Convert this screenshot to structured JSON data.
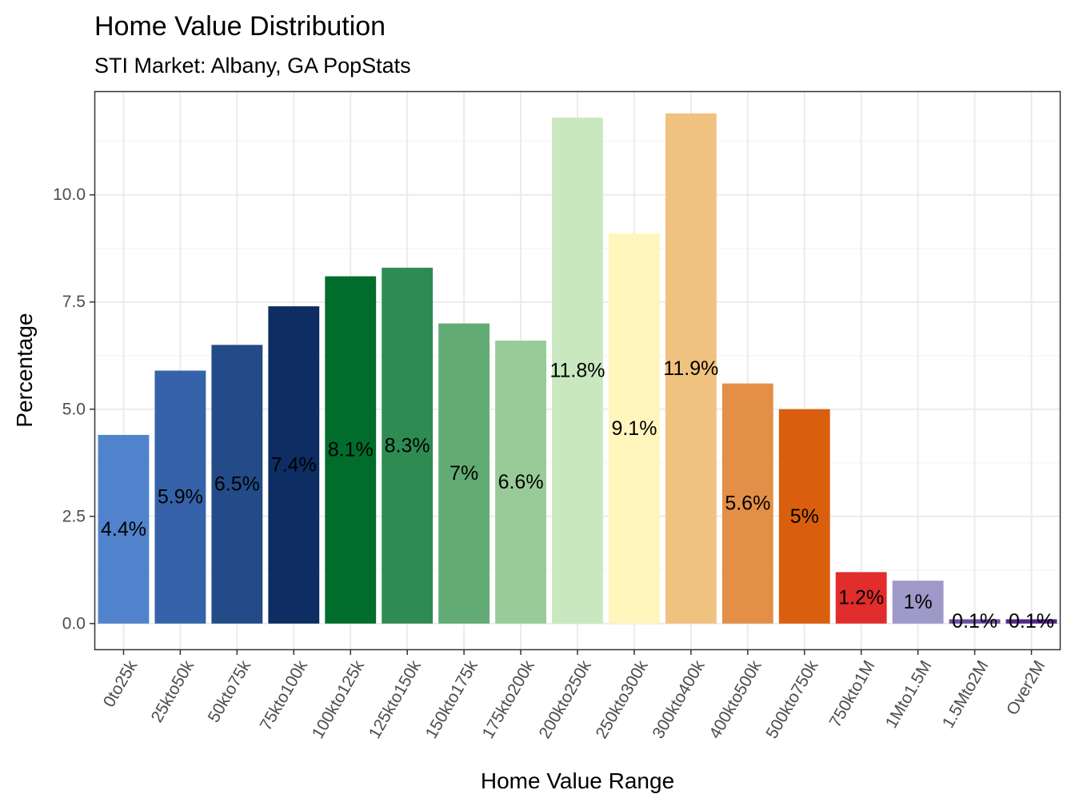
{
  "chart_data": {
    "type": "bar",
    "title": "Home Value Distribution",
    "subtitle": "STI Market: Albany, GA PopStats",
    "xlabel": "Home Value Range",
    "ylabel": "Percentage",
    "ylim": [
      -0.6,
      12.4
    ],
    "yticks": [
      0,
      2.5,
      5,
      7.5,
      10
    ],
    "ytick_labels": [
      "0.0",
      "2.5",
      "5.0",
      "7.5",
      "10.0"
    ],
    "grid": true,
    "legend": "none",
    "categories": [
      "0to25k",
      "25kto50k",
      "50kto75k",
      "75kto100k",
      "100kto125k",
      "125kto150k",
      "150kto175k",
      "175kto200k",
      "200kto250k",
      "250kto300k",
      "300kto400k",
      "400kto500k",
      "500kto750k",
      "750kto1M",
      "1Mto1.5M",
      "1.5Mto2M",
      "Over2M"
    ],
    "values": [
      4.4,
      5.9,
      6.5,
      7.4,
      8.1,
      8.3,
      7.0,
      6.6,
      11.8,
      9.1,
      11.9,
      5.6,
      5.0,
      1.2,
      1.0,
      0.1,
      0.1
    ],
    "labels": [
      "4.4%",
      "5.9%",
      "6.5%",
      "7.4%",
      "8.1%",
      "8.3%",
      "7%",
      "6.6%",
      "11.8%",
      "9.1%",
      "11.9%",
      "5.6%",
      "5%",
      "1.2%",
      "1%",
      "0.1%",
      "0.1%"
    ],
    "colors": [
      "#5083cc",
      "#3562a8",
      "#224b87",
      "#0d2d63",
      "#006d2c",
      "#2e8b52",
      "#63ab74",
      "#98cb98",
      "#c9e8c0",
      "#fff6bd",
      "#f0c27f",
      "#e38f47",
      "#d95f0e",
      "#e12d2c",
      "#9e99c8",
      "#6a51a3",
      "#54278f"
    ]
  }
}
